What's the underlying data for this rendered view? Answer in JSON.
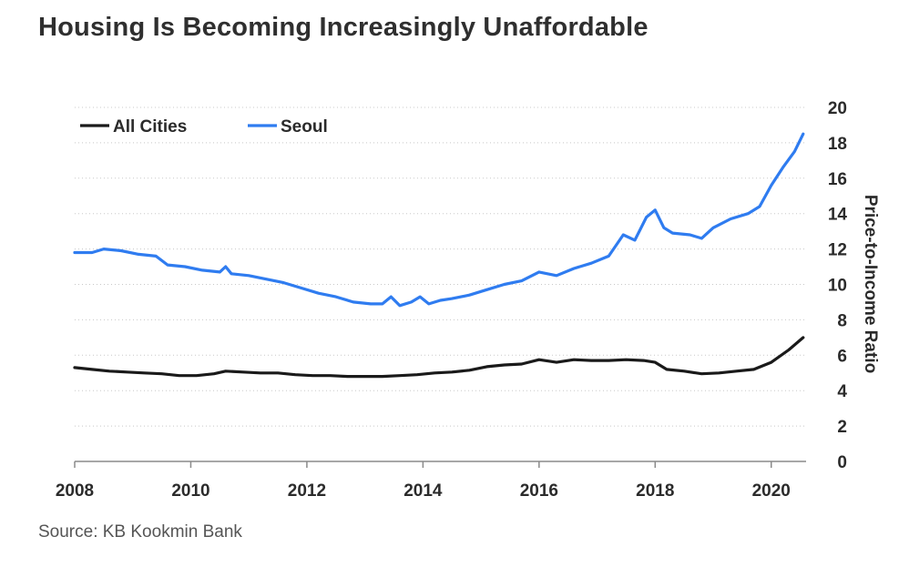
{
  "title": "Housing Is Becoming Increasingly Unaffordable",
  "source": "Source: KB Kookmin Bank",
  "chart_data": {
    "type": "line",
    "title": "Housing Is Becoming Increasingly Unaffordable",
    "xlabel": "",
    "ylabel": "Price-to-Income Ratio",
    "xlim": [
      2008,
      2020.6
    ],
    "ylim": [
      0,
      20
    ],
    "y_axis_side": "right",
    "grid": "horizontal dotted",
    "legend_position": "top-left",
    "x_ticks": [
      2008,
      2010,
      2012,
      2014,
      2016,
      2018,
      2020
    ],
    "y_ticks": [
      0,
      2,
      4,
      6,
      8,
      10,
      12,
      14,
      16,
      18,
      20
    ],
    "series": [
      {
        "name": "All Cities",
        "color": "#1a1a1a",
        "x": [
          2008.0,
          2008.3,
          2008.6,
          2008.9,
          2009.2,
          2009.5,
          2009.8,
          2010.1,
          2010.4,
          2010.6,
          2010.9,
          2011.2,
          2011.5,
          2011.8,
          2012.1,
          2012.4,
          2012.7,
          2013.0,
          2013.3,
          2013.6,
          2013.9,
          2014.2,
          2014.5,
          2014.8,
          2015.1,
          2015.4,
          2015.7,
          2016.0,
          2016.3,
          2016.6,
          2016.9,
          2017.2,
          2017.5,
          2017.8,
          2018.0,
          2018.2,
          2018.5,
          2018.8,
          2019.1,
          2019.4,
          2019.7,
          2020.0,
          2020.3,
          2020.55
        ],
        "values": [
          5.3,
          5.2,
          5.1,
          5.05,
          5.0,
          4.95,
          4.85,
          4.85,
          4.95,
          5.1,
          5.05,
          5.0,
          5.0,
          4.9,
          4.85,
          4.85,
          4.8,
          4.8,
          4.8,
          4.85,
          4.9,
          5.0,
          5.05,
          5.15,
          5.35,
          5.45,
          5.5,
          5.75,
          5.6,
          5.75,
          5.7,
          5.7,
          5.75,
          5.7,
          5.6,
          5.2,
          5.1,
          4.95,
          5.0,
          5.1,
          5.2,
          5.6,
          6.3,
          7.0
        ]
      },
      {
        "name": "Seoul",
        "color": "#2f7cf0",
        "x": [
          2008.0,
          2008.3,
          2008.5,
          2008.8,
          2009.1,
          2009.4,
          2009.6,
          2009.9,
          2010.2,
          2010.5,
          2010.6,
          2010.7,
          2011.0,
          2011.3,
          2011.6,
          2011.9,
          2012.2,
          2012.5,
          2012.8,
          2013.1,
          2013.3,
          2013.45,
          2013.6,
          2013.8,
          2013.95,
          2014.1,
          2014.3,
          2014.5,
          2014.8,
          2015.1,
          2015.4,
          2015.7,
          2016.0,
          2016.3,
          2016.6,
          2016.9,
          2017.2,
          2017.45,
          2017.65,
          2017.85,
          2018.0,
          2018.15,
          2018.3,
          2018.6,
          2018.8,
          2019.0,
          2019.3,
          2019.6,
          2019.8,
          2020.0,
          2020.2,
          2020.4,
          2020.55
        ],
        "values": [
          11.8,
          11.8,
          12.0,
          11.9,
          11.7,
          11.6,
          11.1,
          11.0,
          10.8,
          10.7,
          11.0,
          10.6,
          10.5,
          10.3,
          10.1,
          9.8,
          9.5,
          9.3,
          9.0,
          8.9,
          8.9,
          9.3,
          8.8,
          9.0,
          9.3,
          8.9,
          9.1,
          9.2,
          9.4,
          9.7,
          10.0,
          10.2,
          10.7,
          10.5,
          10.9,
          11.2,
          11.6,
          12.8,
          12.5,
          13.8,
          14.2,
          13.2,
          12.9,
          12.8,
          12.6,
          13.2,
          13.7,
          14.0,
          14.4,
          15.6,
          16.6,
          17.5,
          18.5
        ]
      }
    ]
  }
}
